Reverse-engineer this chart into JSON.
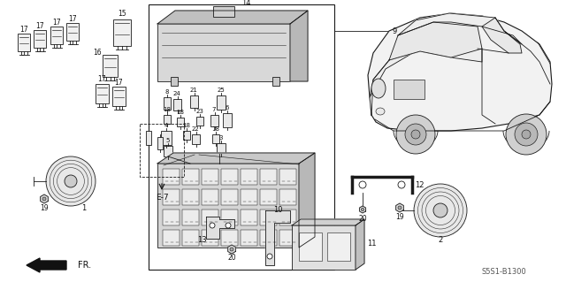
{
  "bg_color": "#ffffff",
  "line_color": "#1a1a1a",
  "diagram_code": "S5S1-B1300",
  "figsize": [
    6.4,
    3.19
  ],
  "dpi": 100
}
